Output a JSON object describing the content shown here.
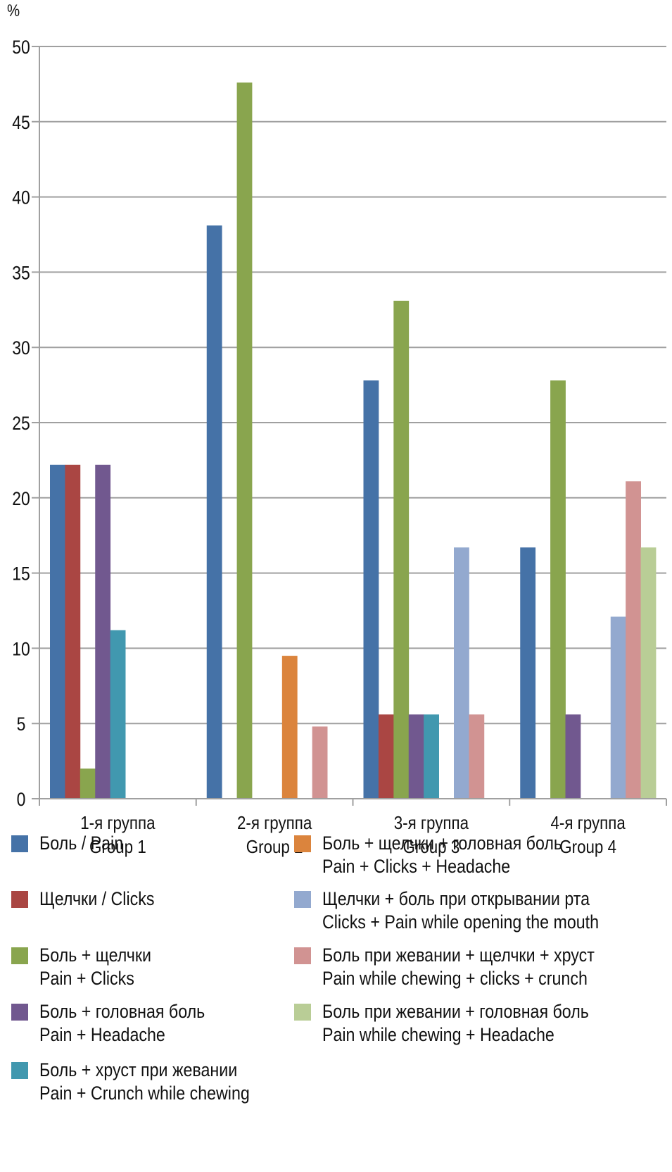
{
  "chart_data": {
    "type": "bar",
    "title": "",
    "xlabel": "",
    "ylabel": "%",
    "ylim": [
      0,
      50
    ],
    "yticks": [
      0,
      5,
      10,
      15,
      20,
      25,
      30,
      35,
      40,
      45,
      50
    ],
    "grid": true,
    "legend_position": "bottom",
    "categories": [
      {
        "line1": "1-я группа",
        "line2": "Group 1"
      },
      {
        "line1": "2-я группа",
        "line2": "Group 2"
      },
      {
        "line1": "3-я группа",
        "line2": "Group 3"
      },
      {
        "line1": "4-я группа",
        "line2": "Group 4"
      }
    ],
    "series": [
      {
        "name_ru": "Боль / Pain",
        "name_en": "",
        "color": "#4572A7",
        "values": [
          22.2,
          38.1,
          27.8,
          16.7
        ]
      },
      {
        "name_ru": "Щелчки / Clicks",
        "name_en": "",
        "color": "#AA4643",
        "values": [
          22.2,
          0,
          5.6,
          0
        ]
      },
      {
        "name_ru": "Боль + щелчки",
        "name_en": "Pain + Clicks",
        "color": "#89A54E",
        "values": [
          2.0,
          47.6,
          33.1,
          27.8
        ]
      },
      {
        "name_ru": "Боль + головная боль",
        "name_en": "Pain + Headache",
        "color": "#71588F",
        "values": [
          22.2,
          0,
          5.6,
          5.6
        ]
      },
      {
        "name_ru": "Боль + хруст при жевании",
        "name_en": "Pain + Crunch while chewing",
        "color": "#4198AF",
        "values": [
          11.2,
          0,
          5.6,
          0
        ]
      },
      {
        "name_ru": "Боль + щелчки + головная боль",
        "name_en": "Pain + Clicks + Headache",
        "color": "#DB843D",
        "values": [
          0,
          9.5,
          0,
          0
        ]
      },
      {
        "name_ru": "Щелчки + боль при открывании рта",
        "name_en": "Clicks + Pain while opening the mouth",
        "color": "#93A9CF",
        "values": [
          0,
          0,
          16.7,
          12.1
        ]
      },
      {
        "name_ru": "Боль при жевании + щелчки + хруст",
        "name_en": "Pain while chewing + clicks + crunch",
        "color": "#D19392",
        "values": [
          0,
          4.8,
          5.6,
          21.1
        ]
      },
      {
        "name_ru": "Боль при жевании + головная боль",
        "name_en": "Pain while chewing + Headache",
        "color": "#B9CD96",
        "values": [
          0,
          0,
          0,
          16.7
        ]
      }
    ]
  }
}
